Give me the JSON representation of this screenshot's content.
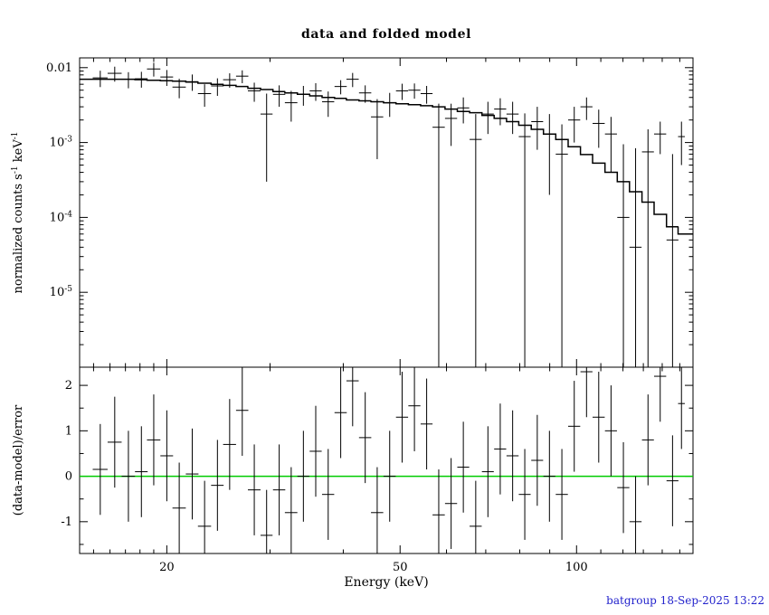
{
  "chart_data": {
    "type": "scatter",
    "title": "data and folded model",
    "xlabel": "Energy (keV)",
    "ylabel_top": "normalized counts s^-1^ keV^-1^",
    "ylabel_bottom": "(data-model)/error",
    "footer": "batgroup 18-Sep-2025 13:22",
    "x_scale": "log",
    "xlim": [
      14.2,
      158
    ],
    "x_ticks": [
      {
        "v": 20,
        "t": "20"
      },
      {
        "v": 50,
        "t": "50"
      },
      {
        "v": 100,
        "t": "100"
      }
    ],
    "x_minor_ticks": [
      15,
      16,
      17,
      18,
      19,
      30,
      40,
      60,
      70,
      80,
      90,
      110,
      120,
      130,
      140,
      150
    ],
    "top_panel": {
      "y_scale": "log",
      "ylim": [
        1e-06,
        0.0135
      ],
      "y_ticks": [
        {
          "v": 0.01,
          "t": "0.01"
        },
        {
          "v": 0.001,
          "t": "10^-3^"
        },
        {
          "v": 0.0001,
          "t": "10^-4^"
        },
        {
          "v": 1e-05,
          "t": "10^-5^"
        }
      ]
    },
    "bottom_panel": {
      "y_scale": "linear",
      "ylim": [
        -1.7,
        2.4
      ],
      "zero_line": 0,
      "y_ticks": [
        {
          "v": 2,
          "t": "2"
        },
        {
          "v": 1,
          "t": "1"
        },
        {
          "v": 0,
          "t": "0"
        },
        {
          "v": -1,
          "t": "-1"
        }
      ],
      "y_minor_ticks": [
        -1.5,
        -0.5,
        0.5,
        1.5
      ],
      "residual_bar_halfheight": 1
    },
    "colors": {
      "data": "#000000",
      "model": "#000000",
      "frame": "#000000",
      "zero_line": "#00cc00",
      "footer": "#2222cc",
      "background": "#ffffff"
    },
    "points_format": [
      "energy_keV",
      "half_width_keV",
      "rate",
      "rate_err",
      "model",
      "residual_sigma"
    ],
    "points": [
      [
        15.4,
        0.45,
        0.0073,
        0.0018,
        0.007,
        0.15
      ],
      [
        16.3,
        0.45,
        0.0084,
        0.0019,
        0.007,
        0.75
      ],
      [
        17.2,
        0.45,
        0.007,
        0.0017,
        0.007,
        0.0
      ],
      [
        18.1,
        0.45,
        0.0071,
        0.0017,
        0.0069,
        0.1
      ],
      [
        19.0,
        0.5,
        0.0096,
        0.002,
        0.0068,
        0.8
      ],
      [
        20.0,
        0.5,
        0.0075,
        0.0018,
        0.0067,
        0.45
      ],
      [
        21.0,
        0.55,
        0.0055,
        0.0016,
        0.0066,
        -0.7
      ],
      [
        22.1,
        0.55,
        0.0065,
        0.0016,
        0.0064,
        0.05
      ],
      [
        23.2,
        0.6,
        0.0045,
        0.0015,
        0.0062,
        -1.1
      ],
      [
        24.4,
        0.6,
        0.0057,
        0.0015,
        0.006,
        -0.2
      ],
      [
        25.6,
        0.65,
        0.0069,
        0.0015,
        0.0058,
        0.7
      ],
      [
        26.9,
        0.65,
        0.0077,
        0.0015,
        0.0056,
        1.45
      ],
      [
        28.2,
        0.7,
        0.0049,
        0.0014,
        0.0053,
        -0.3
      ],
      [
        29.6,
        0.7,
        0.0024,
        0.0021,
        0.0051,
        -1.3
      ],
      [
        31.1,
        0.75,
        0.0044,
        0.0014,
        0.0048,
        -0.3
      ],
      [
        32.6,
        0.8,
        0.0034,
        0.0015,
        0.0046,
        -0.8
      ],
      [
        34.2,
        0.8,
        0.0044,
        0.0013,
        0.0044,
        0.0
      ],
      [
        35.9,
        0.85,
        0.0049,
        0.0013,
        0.0042,
        0.55
      ],
      [
        37.7,
        0.9,
        0.0035,
        0.0013,
        0.004,
        -0.4
      ],
      [
        39.6,
        0.95,
        0.0056,
        0.0012,
        0.0039,
        1.4
      ],
      [
        41.5,
        1.0,
        0.007,
        0.0015,
        0.0037,
        2.1
      ],
      [
        43.6,
        1.05,
        0.0046,
        0.0012,
        0.0036,
        0.85
      ],
      [
        45.7,
        1.1,
        0.0022,
        0.0016,
        0.0035,
        -0.8
      ],
      [
        48.0,
        1.15,
        0.0034,
        0.0012,
        0.0034,
        0.0
      ],
      [
        50.4,
        1.2,
        0.0049,
        0.0012,
        0.0033,
        1.3
      ],
      [
        52.9,
        1.25,
        0.005,
        0.00115,
        0.0032,
        1.55
      ],
      [
        55.5,
        1.3,
        0.0045,
        0.0012,
        0.0031,
        1.15
      ],
      [
        58.2,
        1.4,
        0.0016,
        0.0017,
        0.003,
        -0.85
      ],
      [
        61.1,
        1.45,
        0.0021,
        0.0012,
        0.0028,
        -0.6
      ],
      [
        64.1,
        1.5,
        0.0029,
        0.0011,
        0.0026,
        0.2
      ],
      [
        67.3,
        1.6,
        0.0011,
        0.0013,
        0.0025,
        -1.1
      ],
      [
        70.6,
        1.65,
        0.0024,
        0.0011,
        0.0023,
        0.1
      ],
      [
        74.1,
        1.75,
        0.0028,
        0.0011,
        0.0021,
        0.6
      ],
      [
        77.8,
        1.85,
        0.0024,
        0.0011,
        0.0019,
        0.45
      ],
      [
        81.6,
        1.9,
        0.0012,
        0.00125,
        0.0017,
        -0.4
      ],
      [
        85.7,
        2.0,
        0.0019,
        0.0011,
        0.0015,
        0.35
      ],
      [
        89.9,
        2.1,
        0.0013,
        0.0011,
        0.0013,
        0.0
      ],
      [
        94.4,
        2.25,
        0.0007,
        0.00105,
        0.0011,
        -0.4
      ],
      [
        99.1,
        2.35,
        0.002,
        0.001,
        0.00088,
        1.1
      ],
      [
        104.0,
        2.45,
        0.003,
        0.001,
        0.00069,
        2.3
      ],
      [
        109.1,
        2.6,
        0.0018,
        0.00095,
        0.00053,
        1.3
      ],
      [
        114.5,
        2.7,
        0.0013,
        0.0009,
        0.0004,
        1.0
      ],
      [
        120.2,
        2.85,
        0.0001,
        0.00085,
        0.0003,
        -0.25
      ],
      [
        126.1,
        3.0,
        4e-05,
        0.0008,
        0.00022,
        -1.0
      ],
      [
        132.4,
        3.1,
        0.00075,
        0.00075,
        0.00016,
        0.8
      ],
      [
        138.9,
        3.3,
        0.0013,
        0.0006,
        0.00011,
        2.2
      ],
      [
        145.8,
        3.4,
        5e-05,
        0.00065,
        7.5e-05,
        -0.1
      ],
      [
        151.0,
        2.0,
        0.0012,
        0.0007,
        6e-05,
        1.6
      ]
    ]
  }
}
